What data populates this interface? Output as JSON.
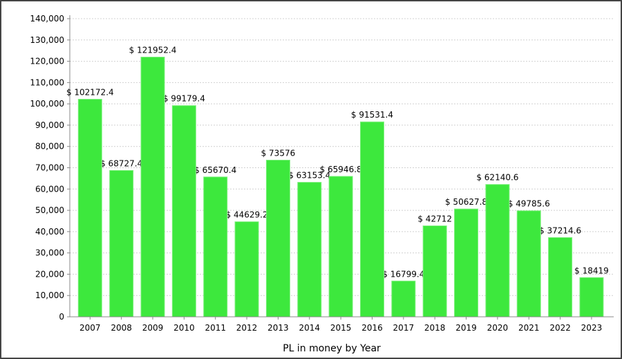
{
  "chart_data": {
    "type": "bar",
    "title": "",
    "xlabel": "PL in money by Year",
    "ylabel": "",
    "ylim": [
      0,
      140000
    ],
    "yticks": [
      0,
      10000,
      20000,
      30000,
      40000,
      50000,
      60000,
      70000,
      80000,
      90000,
      100000,
      110000,
      120000,
      130000,
      140000
    ],
    "ytick_labels": [
      "0",
      "10,000",
      "20,000",
      "30,000",
      "40,000",
      "50,000",
      "60,000",
      "70,000",
      "80,000",
      "90,000",
      "100,000",
      "110,000",
      "120,000",
      "130,000",
      "140,000"
    ],
    "grid": true,
    "bar_color": "#3de83d",
    "categories": [
      "2007",
      "2008",
      "2009",
      "2010",
      "2011",
      "2012",
      "2013",
      "2014",
      "2015",
      "2016",
      "2017",
      "2018",
      "2019",
      "2020",
      "2021",
      "2022",
      "2023"
    ],
    "values": [
      102172.4,
      68727.4,
      121952.4,
      99179.4,
      65670.4,
      44629.2,
      73576,
      63153.4,
      65946.8,
      91531.4,
      16799.4,
      42712,
      50627.8,
      62140.6,
      49785.6,
      37214.6,
      18419
    ],
    "data_labels": [
      "$ 102172.4",
      "$ 68727.4",
      "$ 121952.4",
      "$ 99179.4",
      "$ 65670.4",
      "$ 44629.2",
      "$ 73576",
      "$ 63153.4",
      "$ 65946.8",
      "$ 91531.4",
      "$ 16799.4",
      "$ 42712",
      "$ 50627.8",
      "$ 62140.6",
      "$ 49785.6",
      "$ 37214.6",
      "$ 18419"
    ]
  }
}
